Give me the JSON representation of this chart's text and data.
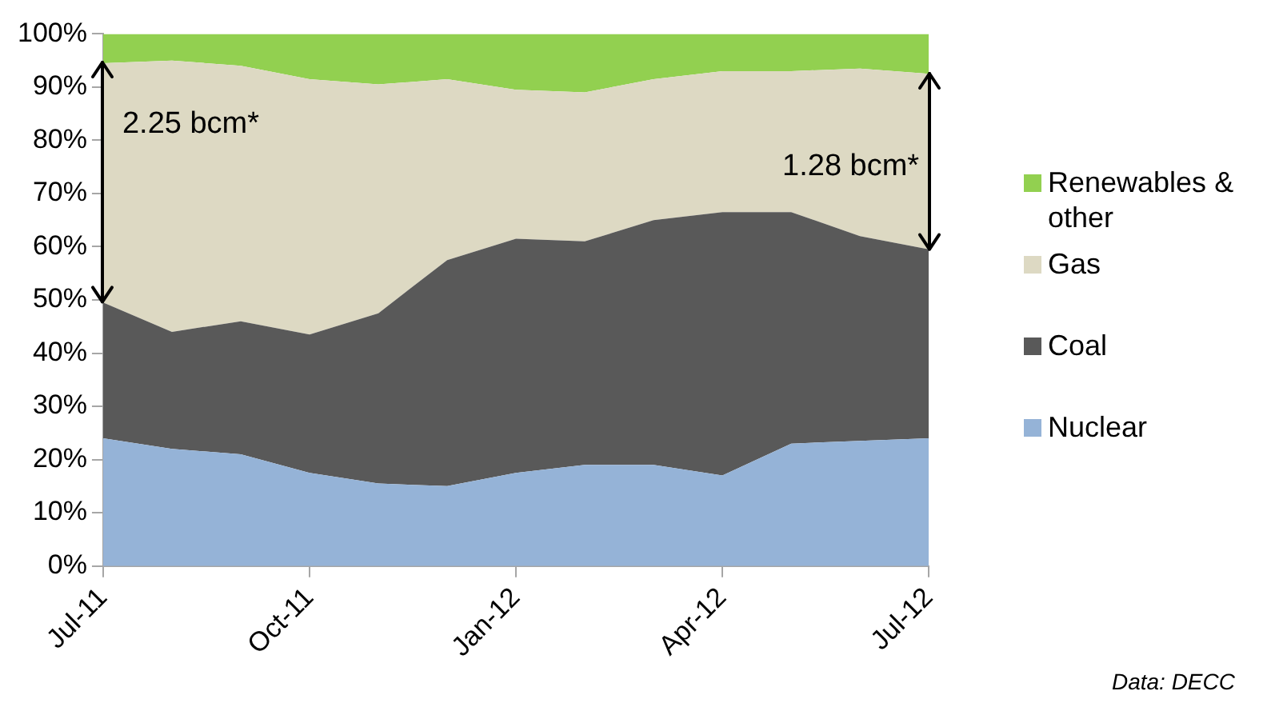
{
  "chart_data": {
    "type": "area",
    "stacked": true,
    "legend": "right",
    "grid": false,
    "marker": "none",
    "categories": [
      "Jul-11",
      null,
      null,
      "Oct-11",
      null,
      null,
      "Jan-12",
      null,
      null,
      "Apr-12",
      null,
      null,
      "Jul-12"
    ],
    "ylim": [
      0,
      100
    ],
    "yticks": [
      {
        "value": 0,
        "label": "0%"
      },
      {
        "value": 10,
        "label": "10%"
      },
      {
        "value": 20,
        "label": "20%"
      },
      {
        "value": 30,
        "label": "30%"
      },
      {
        "value": 40,
        "label": "40%"
      },
      {
        "value": 50,
        "label": "50%"
      },
      {
        "value": 60,
        "label": "60%"
      },
      {
        "value": 70,
        "label": "70%"
      },
      {
        "value": 80,
        "label": "80%"
      },
      {
        "value": 90,
        "label": "90%"
      },
      {
        "value": 100,
        "label": "100%"
      }
    ],
    "series": [
      {
        "name": "Nuclear",
        "color": "#95b3d7",
        "values": [
          24,
          22,
          21,
          17.5,
          15.5,
          15,
          17.5,
          19,
          19,
          17,
          23,
          23.5,
          24
        ]
      },
      {
        "name": "Coal",
        "color": "#595959",
        "values": [
          25.5,
          22,
          25,
          26,
          32,
          42.5,
          44,
          42,
          46,
          49.5,
          43.5,
          38.5,
          35.5
        ]
      },
      {
        "name": "Gas",
        "color": "#ddd9c3",
        "values": [
          45,
          51,
          48,
          48,
          43,
          34,
          28,
          28,
          26.5,
          26.5,
          26.5,
          31.5,
          33
        ]
      },
      {
        "name": "Renewables & other",
        "color": "#92d050",
        "values": [
          5.5,
          5,
          6,
          8.5,
          9.5,
          8.5,
          10.5,
          11,
          8.5,
          7,
          7,
          6.5,
          7.5
        ]
      }
    ],
    "annotations": [
      {
        "text": "2.25 bcm*",
        "x": "Jul-11",
        "y": 83
      },
      {
        "text": "1.28 bcm*",
        "x": "Jul-12",
        "y": 75
      },
      "Data: DECC"
    ]
  }
}
